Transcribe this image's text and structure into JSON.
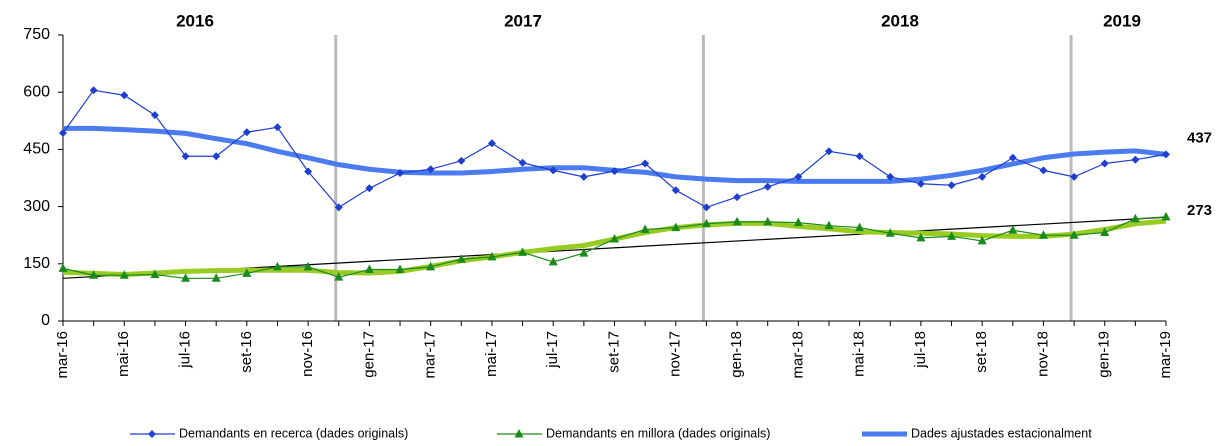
{
  "chart_data": {
    "type": "line",
    "year_labels": [
      "2016",
      "2017",
      "2018",
      "2019"
    ],
    "categories": [
      "mar-16",
      null,
      "mai-16",
      null,
      "jul-16",
      null,
      "set-16",
      null,
      "nov-16",
      null,
      "gen-17",
      null,
      "mar-17",
      null,
      "mai-17",
      null,
      "jul-17",
      null,
      "set-17",
      null,
      "nov-17",
      null,
      "gen-18",
      null,
      "mar-18",
      null,
      "mai-18",
      null,
      "jul-18",
      null,
      "set-18",
      null,
      "nov-18",
      null,
      "gen-19",
      null,
      "mar-19"
    ],
    "series": [
      {
        "name": "Demandants en recerca (dades originals)",
        "color": "#1f3fd0",
        "marker": "diamond",
        "values": [
          493,
          605,
          592,
          540,
          432,
          432,
          495,
          508,
          392,
          298,
          348,
          388,
          398,
          420,
          466,
          415,
          395,
          378,
          393,
          413,
          343,
          298,
          325,
          352,
          378,
          445,
          432,
          378,
          360,
          356,
          378,
          428,
          395,
          378,
          413,
          423,
          437
        ]
      },
      {
        "name": "Demandants en millora (dades originals)",
        "color": "#1a8a1a",
        "marker": "triangle",
        "values": [
          138,
          120,
          120,
          122,
          112,
          112,
          125,
          142,
          142,
          115,
          135,
          135,
          142,
          162,
          168,
          180,
          155,
          178,
          215,
          240,
          245,
          255,
          260,
          260,
          258,
          250,
          245,
          230,
          218,
          222,
          210,
          238,
          225,
          225,
          232,
          268,
          273
        ]
      },
      {
        "name": "Dades ajustades estacionalment",
        "color": "#4a7cf0",
        "marker": "none",
        "values": [
          505,
          505,
          502,
          498,
          492,
          478,
          465,
          445,
          428,
          410,
          398,
          390,
          388,
          388,
          392,
          398,
          402,
          402,
          395,
          390,
          378,
          372,
          368,
          368,
          366,
          366,
          366,
          366,
          372,
          382,
          395,
          412,
          428,
          438,
          443,
          446,
          437
        ]
      },
      {
        "color": "#99cc22",
        "marker": "none",
        "values": [
          128,
          125,
          122,
          126,
          130,
          132,
          133,
          133,
          133,
          127,
          126,
          130,
          143,
          158,
          168,
          180,
          190,
          198,
          215,
          232,
          245,
          252,
          256,
          256,
          248,
          242,
          234,
          232,
          230,
          228,
          224,
          222,
          222,
          228,
          240,
          255,
          262
        ]
      }
    ],
    "trend": {
      "color": "#000000",
      "values": [
        112,
        272
      ]
    },
    "ylim": [
      0,
      750
    ],
    "yticks": [
      0,
      150,
      300,
      450,
      600,
      750
    ],
    "grid": false,
    "legend": "bottom"
  }
}
